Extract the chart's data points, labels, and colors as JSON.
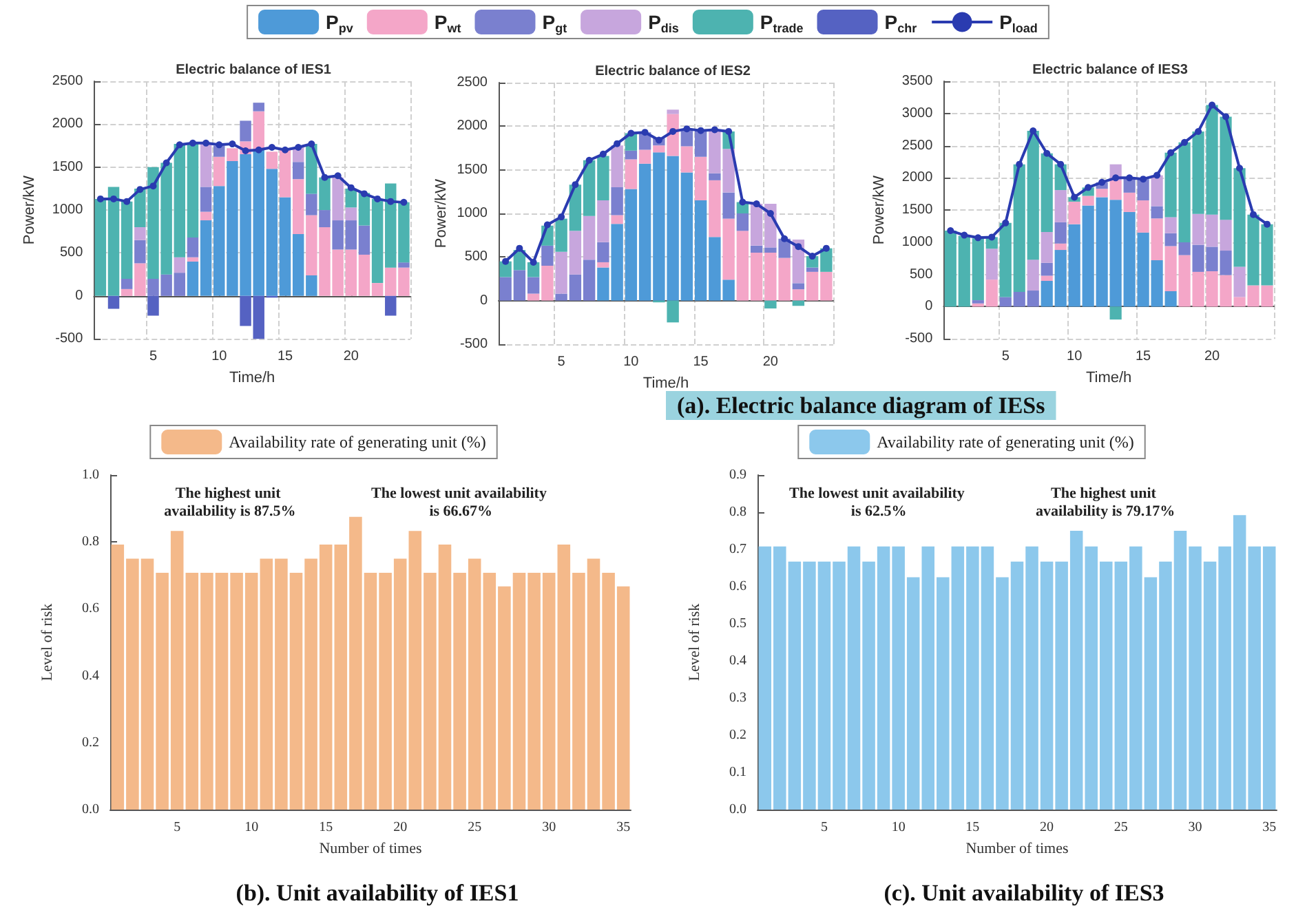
{
  "chart_data": [
    {
      "type": "bar",
      "stacked": true,
      "title": "Electric balance of IES1",
      "xlabel": "Time/h",
      "ylabel": "Power/kW",
      "categories": [
        null,
        null,
        null,
        null,
        "5",
        null,
        null,
        null,
        null,
        "10",
        null,
        null,
        null,
        null,
        "15",
        null,
        null,
        null,
        null,
        "20",
        null,
        null,
        null,
        null
      ],
      "ylim": [
        -500,
        2500
      ],
      "yticks": [
        -500,
        0,
        500,
        1000,
        1500,
        2000,
        2500
      ],
      "grid": true,
      "marker": "circle",
      "series": [
        {
          "color": "#4e9ad8",
          "values": [
            0,
            0,
            0,
            0,
            0,
            0,
            0,
            400,
            880,
            1280,
            1570,
            1650,
            1700,
            1480,
            1150,
            720,
            240,
            0,
            0,
            0,
            0,
            0,
            0,
            0
          ]
        },
        {
          "color": "#f4a6c8",
          "values": [
            0,
            0,
            80,
            380,
            0,
            0,
            0,
            50,
            100,
            340,
            150,
            150,
            450,
            200,
            550,
            640,
            700,
            800,
            540,
            540,
            480,
            150,
            330,
            330
          ]
        },
        {
          "color": "#7a80cf",
          "values": [
            0,
            0,
            120,
            270,
            200,
            250,
            270,
            230,
            290,
            130,
            null,
            240,
            100,
            null,
            0,
            200,
            250,
            200,
            340,
            340,
            340,
            0,
            0,
            60
          ]
        },
        {
          "color": "#c7a6dd",
          "values": [
            0,
            0,
            0,
            150,
            0,
            0,
            180,
            0,
            510,
            0,
            0,
            0,
            0,
            0,
            0,
            170,
            0,
            0,
            500,
            150,
            0,
            0,
            0,
            0
          ]
        },
        {
          "color": "#4db3b0",
          "values": [
            1130,
            1270,
            900,
            450,
            1300,
            1300,
            1320,
            1100,
            0,
            0,
            0,
            0,
            0,
            0,
            0,
            0,
            580,
            380,
            0,
            220,
            380,
            980,
            980,
            700
          ]
        },
        {
          "color": "#5562c2",
          "values": [
            0,
            -150,
            0,
            0,
            -230,
            0,
            0,
            0,
            0,
            0,
            0,
            -350,
            -500,
            -20,
            0,
            0,
            0,
            0,
            0,
            0,
            0,
            0,
            -230,
            0
          ]
        },
        {
          "type": "line",
          "color": "#2a3bb0",
          "values": [
            1130,
            1130,
            1100,
            1240,
            1280,
            1550,
            1760,
            1780,
            1780,
            1760,
            1770,
            1690,
            1700,
            1730,
            1700,
            1730,
            1770,
            1380,
            1400,
            1260,
            1190,
            1130,
            1100,
            1090
          ]
        }
      ]
    },
    {
      "type": "bar",
      "stacked": true,
      "title": "Electric balance of IES2",
      "xlabel": "Time/h",
      "ylabel": "Power/kW",
      "annotations": [
        "(a). Electric balance diagram of IESs"
      ],
      "legend": "top",
      "categories": [
        null,
        null,
        null,
        null,
        "5",
        null,
        null,
        null,
        null,
        "10",
        null,
        null,
        null,
        null,
        "15",
        null,
        null,
        null,
        null,
        "20",
        null,
        null,
        null,
        null
      ],
      "ylim": [
        -500,
        2500
      ],
      "yticks": [
        -500,
        0,
        500,
        1000,
        1500,
        2000,
        2500
      ],
      "grid": true,
      "marker": "circle",
      "series": [
        {
          "name": "P$_{pv}$",
          "color": "#4e9ad8",
          "values": [
            0,
            0,
            0,
            0,
            0,
            0,
            0,
            380,
            880,
            1280,
            1570,
            1700,
            1660,
            1470,
            1150,
            730,
            240,
            0,
            0,
            0,
            0,
            0,
            0,
            0
          ]
        },
        {
          "name": "P$_{wt}$",
          "color": "#f4a6c8",
          "values": [
            0,
            0,
            80,
            400,
            0,
            0,
            0,
            60,
            100,
            340,
            160,
            80,
            480,
            300,
            500,
            650,
            700,
            800,
            550,
            550,
            490,
            130,
            330,
            330
          ]
        },
        {
          "name": "P$_{gt}$",
          "color": "#7a80cf",
          "values": [
            270,
            350,
            190,
            230,
            80,
            300,
            470,
            230,
            320,
            100,
            200,
            80,
            0,
            200,
            300,
            80,
            300,
            200,
            80,
            60,
            220,
            70,
            50,
            0
          ]
        },
        {
          "name": "P$_{dis}$",
          "color": "#c7a6dd",
          "values": [
            0,
            0,
            0,
            0,
            480,
            500,
            500,
            480,
            480,
            0,
            0,
            0,
            50,
            0,
            0,
            500,
            500,
            0,
            480,
            500,
            0,
            500,
            0,
            0
          ]
        },
        {
          "name": "P$_{trade}$",
          "color": "#4db3b0",
          "values": [
            180,
            230,
            170,
            230,
            380,
            530,
            640,
            510,
            0,
            200,
            0,
            -20,
            -250,
            0,
            0,
            0,
            200,
            130,
            0,
            -90,
            0,
            -60,
            130,
            270
          ]
        },
        {
          "name": "P$_{chr}$",
          "color": "#5562c2",
          "values": [
            0,
            0,
            0,
            0,
            0,
            0,
            0,
            0,
            0,
            0,
            0,
            0,
            0,
            0,
            0,
            0,
            0,
            0,
            0,
            0,
            0,
            0,
            0,
            0
          ]
        },
        {
          "name": "P$_{load}$",
          "type": "line",
          "color": "#2a3bb0",
          "values": [
            450,
            600,
            440,
            870,
            960,
            1330,
            1610,
            1680,
            1800,
            1920,
            1930,
            1840,
            1940,
            1970,
            1950,
            1960,
            1940,
            1130,
            1110,
            1000,
            710,
            620,
            510,
            600
          ]
        }
      ]
    },
    {
      "type": "bar",
      "stacked": true,
      "title": "Electric balance of IES3",
      "xlabel": "Time/h",
      "ylabel": "Power/kW",
      "categories": [
        null,
        null,
        null,
        null,
        "5",
        null,
        null,
        null,
        null,
        "10",
        null,
        null,
        null,
        null,
        "15",
        null,
        null,
        null,
        null,
        "20",
        null,
        null,
        null,
        null
      ],
      "ylim": [
        -500,
        3500
      ],
      "yticks": [
        -500,
        0,
        500,
        1000,
        1500,
        2000,
        2500,
        3000,
        3500
      ],
      "grid": true,
      "marker": "circle",
      "series": [
        {
          "color": "#4e9ad8",
          "values": [
            0,
            0,
            0,
            0,
            0,
            0,
            0,
            400,
            880,
            1280,
            1570,
            1700,
            1660,
            1470,
            1150,
            720,
            240,
            0,
            0,
            0,
            0,
            0,
            0,
            0
          ]
        },
        {
          "color": "#f4a6c8",
          "values": [
            0,
            0,
            50,
            420,
            0,
            0,
            0,
            80,
            100,
            350,
            150,
            130,
            300,
            300,
            500,
            650,
            700,
            800,
            540,
            550,
            490,
            150,
            330,
            330
          ]
        },
        {
          "color": "#7a80cf",
          "values": [
            0,
            0,
            50,
            0,
            150,
            230,
            250,
            200,
            330,
            0,
            0,
            100,
            0,
            230,
            330,
            190,
            200,
            200,
            420,
            380,
            380,
            0,
            0,
            0
          ]
        },
        {
          "color": "#c7a6dd",
          "values": [
            0,
            0,
            0,
            480,
            0,
            0,
            480,
            480,
            500,
            0,
            0,
            0,
            250,
            0,
            0,
            480,
            250,
            0,
            480,
            500,
            480,
            470,
            0,
            0
          ]
        },
        {
          "color": "#4db3b0",
          "values": [
            1180,
            1100,
            960,
            180,
            1150,
            1980,
            2000,
            1220,
            400,
            70,
            130,
            0,
            -200,
            0,
            0,
            0,
            1000,
            1550,
            1280,
            1700,
            1600,
            1530,
            1100,
            950
          ]
        },
        {
          "color": "#5562c2",
          "values": [
            0,
            0,
            0,
            0,
            0,
            0,
            0,
            0,
            0,
            0,
            0,
            0,
            0,
            0,
            0,
            0,
            0,
            0,
            0,
            0,
            0,
            0,
            0,
            0
          ]
        },
        {
          "type": "line",
          "color": "#2a3bb0",
          "values": [
            1180,
            1110,
            1070,
            1080,
            1300,
            2210,
            2730,
            2380,
            2210,
            1700,
            1850,
            1930,
            2000,
            2000,
            1980,
            2040,
            2390,
            2550,
            2720,
            3130,
            2950,
            2150,
            1430,
            1280
          ]
        }
      ]
    },
    {
      "type": "bar",
      "title": "(b). Unit availability of IES1",
      "xlabel": "Number of times",
      "ylabel": "Level of risk",
      "legend": "top",
      "annotations": [
        "The highest unit availability is 87.5%",
        "The lowest unit availability is 66.67%"
      ],
      "categories": [
        null,
        null,
        null,
        null,
        "5",
        null,
        null,
        null,
        null,
        "10",
        null,
        null,
        null,
        null,
        "15",
        null,
        null,
        null,
        null,
        "20",
        null,
        null,
        null,
        null,
        "25",
        null,
        null,
        null,
        null,
        "30",
        null,
        null,
        null,
        null,
        "35"
      ],
      "ylim": [
        0,
        1
      ],
      "yticks": [
        {
          "value": 0,
          "label": "0.0"
        },
        {
          "value": 0.2,
          "label": "0.2"
        },
        {
          "value": 0.4,
          "label": "0.4"
        },
        {
          "value": 0.6,
          "label": "0.6"
        },
        {
          "value": 0.8,
          "label": "0.8"
        },
        {
          "value": 1,
          "label": "1.0"
        }
      ],
      "series": [
        {
          "name": "Availability rate of generating unit (%)",
          "color": "#f4b98a",
          "values": [
            0.792,
            0.75,
            0.75,
            0.708,
            0.833,
            0.708,
            0.708,
            0.708,
            0.708,
            0.708,
            0.75,
            0.75,
            0.708,
            0.75,
            0.792,
            0.792,
            0.875,
            0.708,
            0.708,
            0.75,
            0.833,
            0.708,
            0.792,
            0.708,
            0.75,
            0.708,
            0.667,
            0.708,
            0.708,
            0.708,
            0.792,
            0.708,
            0.75,
            0.708,
            0.667
          ]
        }
      ]
    },
    {
      "type": "bar",
      "title": "(c). Unit availability of IES3",
      "xlabel": "Number of times",
      "ylabel": "Level of risk",
      "legend": "top",
      "annotations": [
        "The lowest unit availability is 62.5%",
        "The highest unit availability is 79.17%"
      ],
      "categories": [
        null,
        null,
        null,
        null,
        "5",
        null,
        null,
        null,
        null,
        "10",
        null,
        null,
        null,
        null,
        "15",
        null,
        null,
        null,
        null,
        "20",
        null,
        null,
        null,
        null,
        "25",
        null,
        null,
        null,
        null,
        "30",
        null,
        null,
        null,
        null,
        "35"
      ],
      "ylim": [
        0,
        0.9
      ],
      "yticks": [
        {
          "value": 0,
          "label": "0.0"
        },
        {
          "value": 0.1,
          "label": "0.1"
        },
        {
          "value": 0.2,
          "label": "0.2"
        },
        {
          "value": 0.3,
          "label": "0.3"
        },
        {
          "value": 0.4,
          "label": "0.4"
        },
        {
          "value": 0.5,
          "label": "0.5"
        },
        {
          "value": 0.6,
          "label": "0.6"
        },
        {
          "value": 0.7,
          "label": "0.7"
        },
        {
          "value": 0.8,
          "label": "0.8"
        },
        {
          "value": 0.9,
          "label": "0.9"
        }
      ],
      "series": [
        {
          "name": "Availability rate of generating unit (%)",
          "color": "#8cc8ec",
          "values": [
            0.708,
            0.708,
            0.667,
            0.667,
            0.667,
            0.667,
            0.708,
            0.667,
            0.708,
            0.708,
            0.625,
            0.708,
            0.625,
            0.708,
            0.708,
            0.708,
            0.625,
            0.667,
            0.708,
            0.667,
            0.667,
            0.75,
            0.708,
            0.667,
            0.667,
            0.708,
            0.625,
            0.667,
            0.75,
            0.708,
            0.667,
            0.708,
            0.792,
            0.708,
            0.708
          ]
        }
      ]
    }
  ]
}
